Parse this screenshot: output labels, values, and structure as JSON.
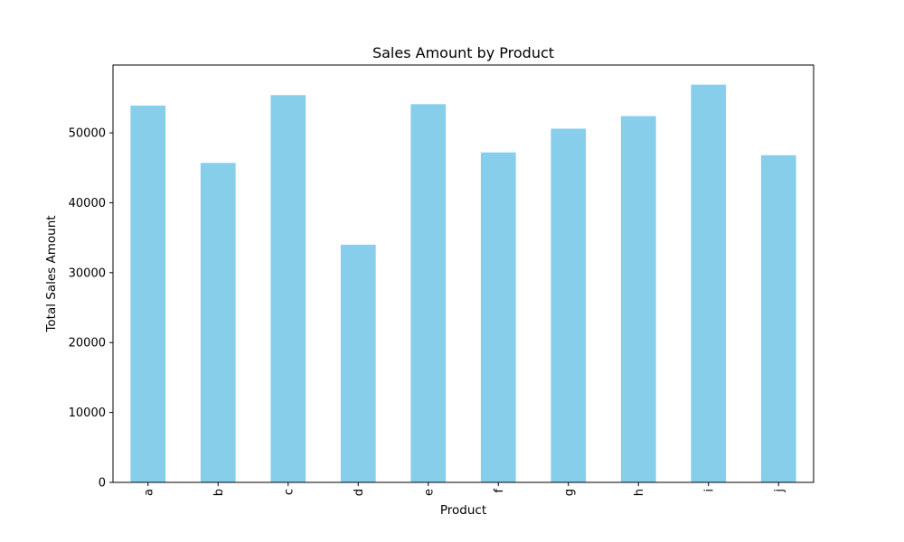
{
  "chart_data": {
    "type": "bar",
    "title": "Sales Amount by Product",
    "xlabel": "Product",
    "ylabel": "Total Sales Amount",
    "categories": [
      "a",
      "b",
      "c",
      "d",
      "e",
      "f",
      "g",
      "h",
      "i",
      "j"
    ],
    "values": [
      53900,
      45700,
      55400,
      34000,
      54100,
      47200,
      50600,
      52400,
      56900,
      46800
    ],
    "ylim": [
      0,
      59700
    ],
    "yticks": [
      0,
      10000,
      20000,
      30000,
      40000,
      50000
    ],
    "ytick_labels": [
      "0",
      "10000",
      "20000",
      "30000",
      "40000",
      "50000"
    ],
    "x_tick_rotation": "vertical",
    "grid": false,
    "legend": false,
    "bar_color": "#87CEEB",
    "axis_color": "#000000"
  }
}
